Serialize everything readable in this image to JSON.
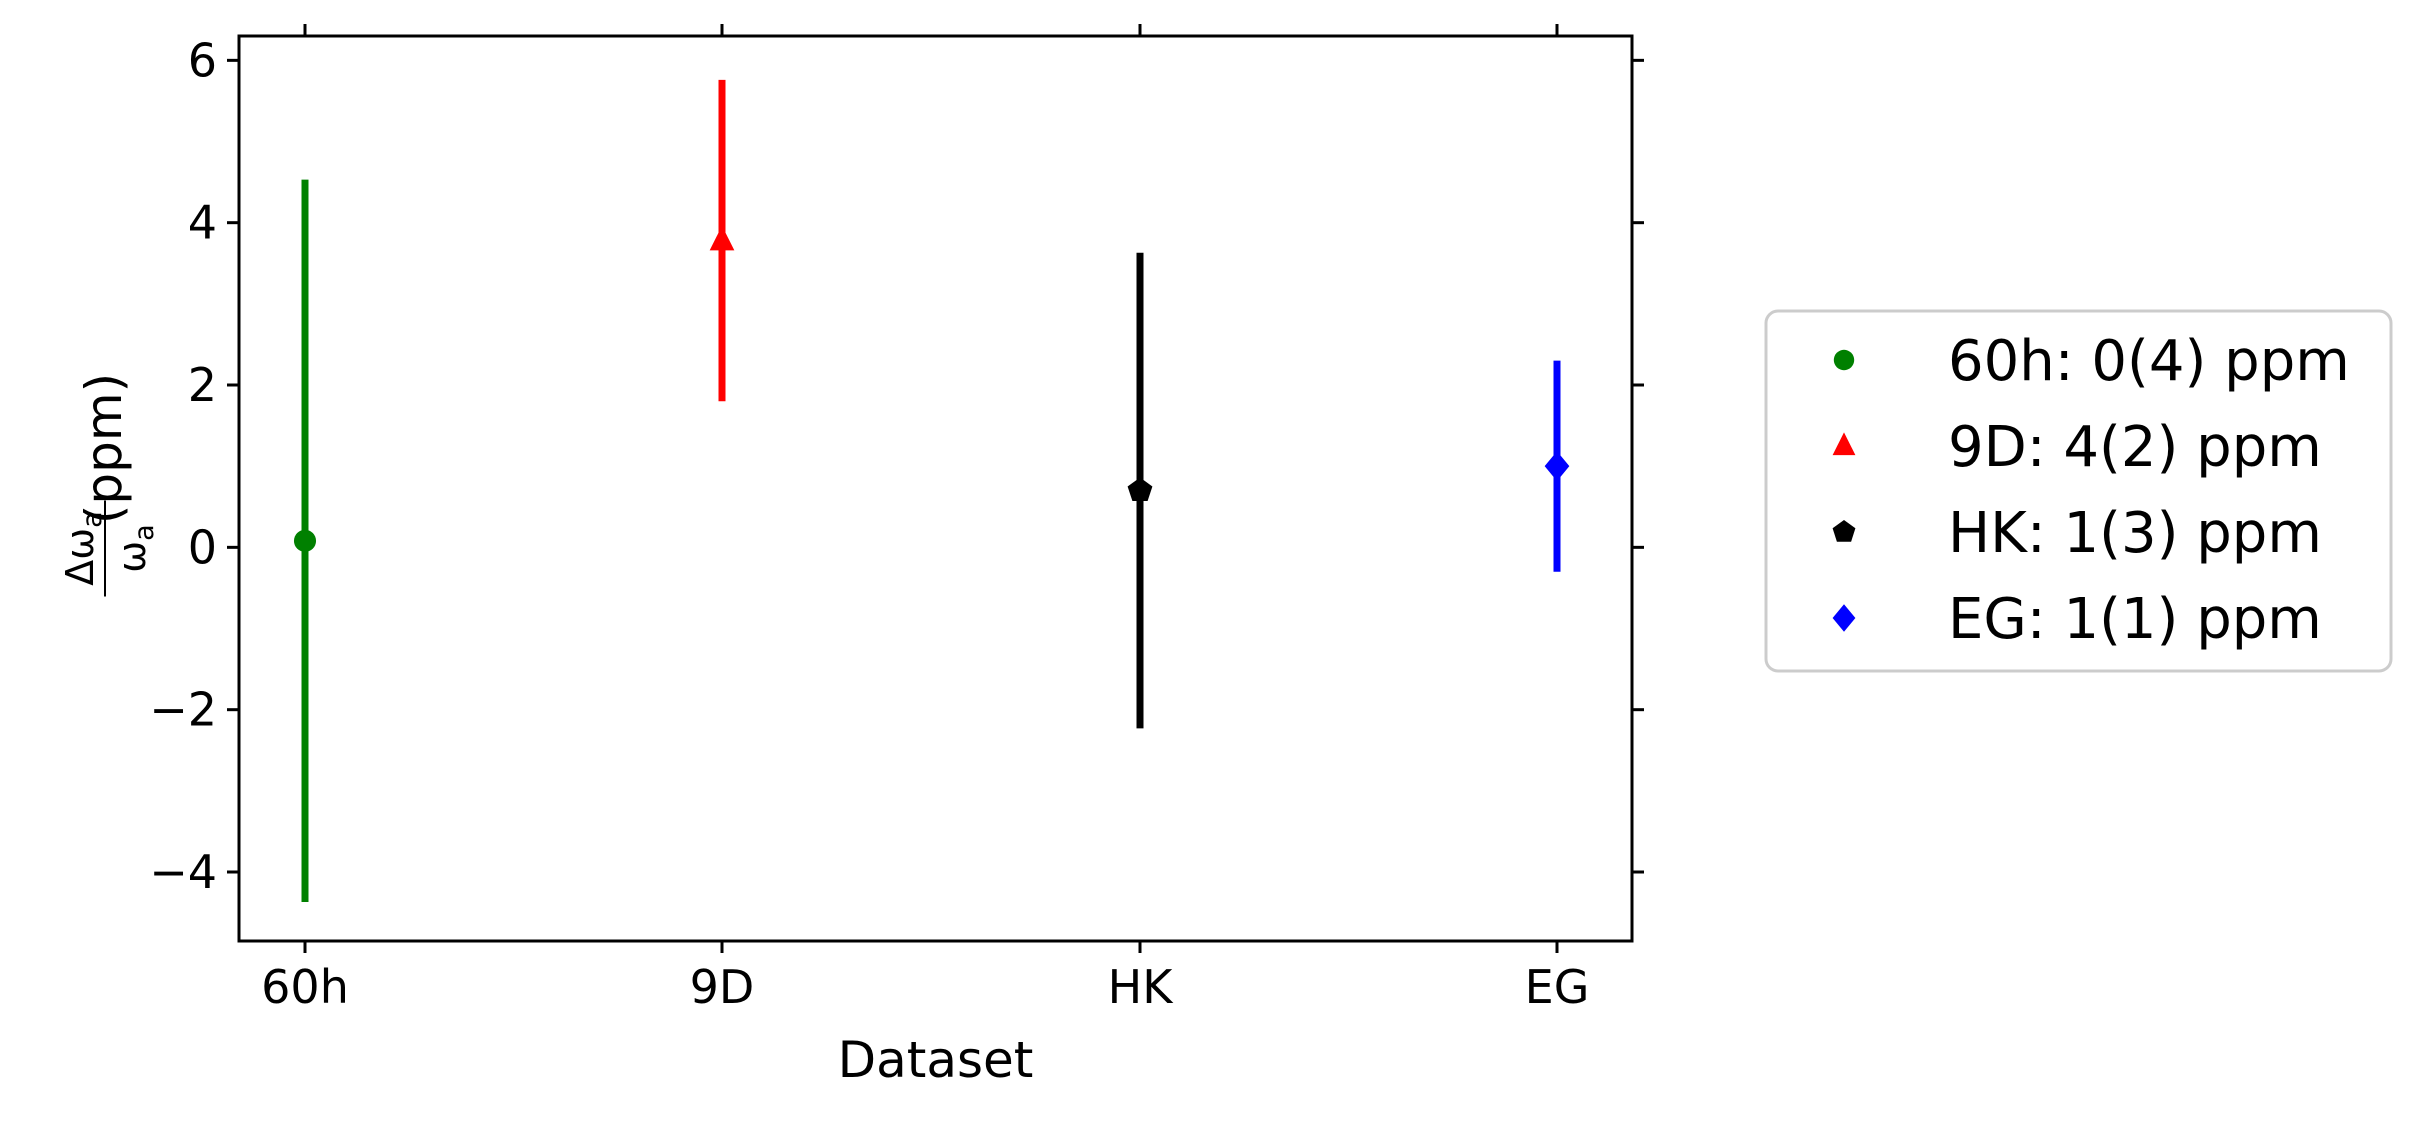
{
  "chart_data": {
    "type": "scatter",
    "categories": [
      "60h",
      "9D",
      "HK",
      "EG"
    ],
    "xlabel": "Dataset",
    "ylabel": {
      "numerator": "Δω",
      "denominator": "ω",
      "subscript": "a",
      "unit": "(ppm)"
    },
    "ylim": [
      -4.85,
      6.3
    ],
    "yticks": [
      -4,
      -2,
      0,
      2,
      4,
      6
    ],
    "ytick_labels": [
      "−4",
      "−2",
      "0",
      "2",
      "4",
      "6"
    ],
    "grid": false,
    "legend_placement": "outside-right",
    "series": [
      {
        "category": "60h",
        "value": 0.08,
        "error": 4.45,
        "marker": "circle",
        "color": "#008000",
        "label": "60h: 0(4) ppm"
      },
      {
        "category": "9D",
        "value": 3.78,
        "error": 1.98,
        "marker": "triangle",
        "color": "#ff0000",
        "label": "9D: 4(2) ppm"
      },
      {
        "category": "HK",
        "value": 0.7,
        "error": 2.93,
        "marker": "pentagon",
        "color": "#000000",
        "label": "HK: 1(3) ppm"
      },
      {
        "category": "EG",
        "value": 1.0,
        "error": 1.3,
        "marker": "diamond",
        "color": "#0000ff",
        "label": "EG: 1(1) ppm"
      }
    ]
  }
}
